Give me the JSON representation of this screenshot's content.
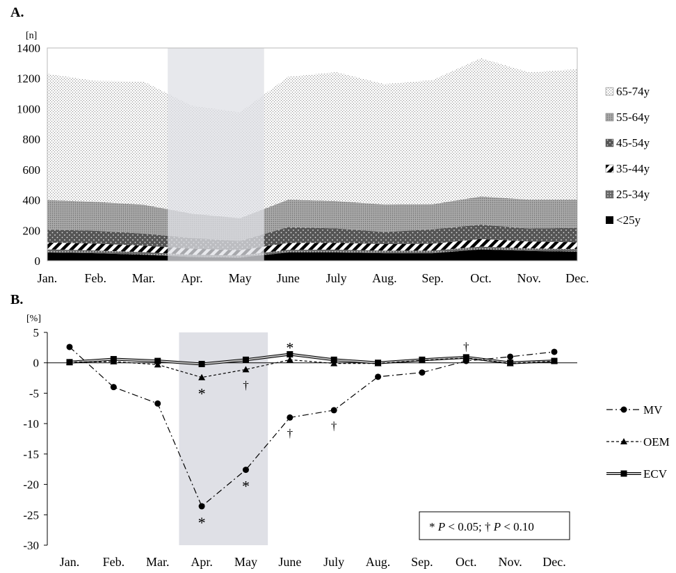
{
  "colors": {
    "highlight": "#dfe0e6",
    "dark": "#000000",
    "gray": "#555555"
  },
  "chart_data": [
    {
      "type": "area",
      "panel_label": "A.",
      "unit_label": "[n]",
      "categories": [
        "Jan.",
        "Feb.",
        "Mar.",
        "Apr.",
        "May",
        "June",
        "July",
        "Aug.",
        "Sep.",
        "Oct.",
        "Nov.",
        "Dec."
      ],
      "ylim": [
        0,
        1400
      ],
      "yticks": [
        0,
        200,
        400,
        600,
        800,
        1000,
        1200,
        1400
      ],
      "highlight_range": [
        "Apr.",
        "May"
      ],
      "legend_position": "right",
      "series": [
        {
          "name": "<25y",
          "values": [
            55,
            50,
            40,
            25,
            22,
            55,
            55,
            50,
            50,
            75,
            65,
            60
          ]
        },
        {
          "name": "25-34y",
          "values": [
            20,
            18,
            17,
            15,
            13,
            17,
            18,
            17,
            17,
            18,
            17,
            17
          ]
        },
        {
          "name": "35-44y",
          "values": [
            45,
            45,
            42,
            40,
            35,
            45,
            45,
            43,
            45,
            50,
            45,
            45
          ]
        },
        {
          "name": "45-54y",
          "values": [
            85,
            85,
            80,
            70,
            60,
            105,
            95,
            80,
            95,
            95,
            85,
            95
          ]
        },
        {
          "name": "55-64y",
          "values": [
            195,
            190,
            190,
            160,
            150,
            180,
            180,
            180,
            165,
            185,
            190,
            185
          ]
        },
        {
          "name": "65-74y",
          "values": [
            830,
            795,
            810,
            710,
            697,
            808,
            848,
            792,
            817,
            910,
            838,
            858
          ]
        }
      ]
    },
    {
      "type": "line",
      "panel_label": "B.",
      "unit_label": "[%]",
      "categories": [
        "Jan.",
        "Feb.",
        "Mar.",
        "Apr.",
        "May",
        "June",
        "July",
        "Aug.",
        "Sep.",
        "Oct.",
        "Nov.",
        "Dec."
      ],
      "ylim": [
        -30,
        5
      ],
      "yticks": [
        5,
        0,
        -5,
        -10,
        -15,
        -20,
        -25,
        -30
      ],
      "highlight_range": [
        "Apr.",
        "May"
      ],
      "legend_position": "right",
      "series": [
        {
          "name": "MV",
          "marker": "circle",
          "values": [
            2.6,
            -4.0,
            -6.7,
            -23.6,
            -17.6,
            -9.0,
            -7.8,
            -2.3,
            -1.6,
            0.3,
            1.0,
            1.8
          ]
        },
        {
          "name": "OEM",
          "marker": "triangle",
          "values": [
            0.1,
            0.2,
            -0.3,
            -2.4,
            -1.1,
            0.5,
            -0.1,
            -0.1,
            0.4,
            0.8,
            -0.1,
            0.3
          ]
        },
        {
          "name": "ECV",
          "marker": "square",
          "values": [
            0.1,
            0.6,
            0.3,
            -0.2,
            0.5,
            1.4,
            0.5,
            0.0,
            0.5,
            0.9,
            0.0,
            0.3
          ]
        }
      ],
      "annotations": [
        {
          "text": "*",
          "category": "Apr.",
          "y": -2.4,
          "position": "below"
        },
        {
          "text": "†",
          "category": "May",
          "y": -1.1,
          "position": "below"
        },
        {
          "text": "*",
          "category": "June",
          "y": 1.4,
          "position": "above"
        },
        {
          "text": "†",
          "category": "Oct.",
          "y": 0.9,
          "position": "above"
        },
        {
          "text": "*",
          "category": "Apr.",
          "y": -23.6,
          "position": "below"
        },
        {
          "text": "*",
          "category": "May",
          "y": -17.6,
          "position": "below"
        },
        {
          "text": "†",
          "category": "June",
          "y": -9.0,
          "position": "below"
        },
        {
          "text": "†",
          "category": "July",
          "y": -7.8,
          "position": "below"
        }
      ],
      "note": {
        "star": "*",
        "p1": "P",
        "lt1": " < 0.05; † ",
        "p2": "P",
        "lt2": " < 0.10"
      }
    }
  ]
}
